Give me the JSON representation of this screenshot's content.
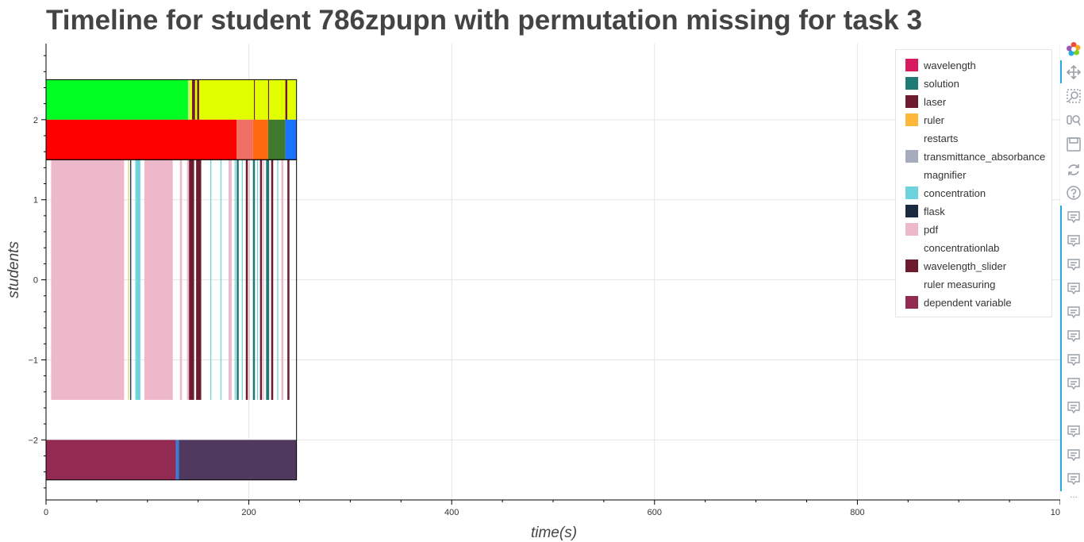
{
  "title": "Timeline for student 786zpupn with permutation missing for task 3",
  "chart_data": {
    "type": "bar",
    "subtype": "horizontal timeline",
    "xlabel": "time(s)",
    "ylabel": "students",
    "xlim": [
      0,
      1000
    ],
    "ylim": [
      -2.75,
      2.95
    ],
    "x_ticks": [
      0,
      200,
      400,
      600,
      800,
      1000
    ],
    "x_tick_labels": [
      "0",
      "200",
      "400",
      "600",
      "800",
      "1000"
    ],
    "y_ticks": [
      2,
      1,
      0,
      -1,
      -2
    ],
    "y_tick_labels": [
      "2",
      "1",
      "0",
      "−1",
      "−2"
    ],
    "grid": true,
    "legend_position": "top-right",
    "legend": [
      {
        "name": "wavelength",
        "color": "#d81b60"
      },
      {
        "name": "solution",
        "color": "#1f7a75"
      },
      {
        "name": "laser",
        "color": "#6e1b2f"
      },
      {
        "name": "ruler",
        "color": "#ffb73b"
      },
      {
        "name": "restarts",
        "color": ""
      },
      {
        "name": "transmittance_absorbance",
        "color": "#a5adbc"
      },
      {
        "name": "magnifier",
        "color": ""
      },
      {
        "name": "concentration",
        "color": "#6fd3db"
      },
      {
        "name": "flask",
        "color": "#1b2a40"
      },
      {
        "name": "pdf",
        "color": "#eeb8cb"
      },
      {
        "name": "concentrationlab",
        "color": ""
      },
      {
        "name": "wavelength_slider",
        "color": "#6e1b2f"
      },
      {
        "name": "ruler measuring",
        "color": ""
      },
      {
        "name": "dependent variable",
        "color": "#922a52"
      }
    ],
    "rows": [
      {
        "y": [
          2.0,
          2.5
        ],
        "segments": [
          {
            "start": 0,
            "end": 140,
            "color": "#00ff22"
          },
          {
            "start": 140,
            "end": 142,
            "color": "#c7f57e"
          },
          {
            "start": 142,
            "end": 144,
            "color": "#e2ff00"
          },
          {
            "start": 144,
            "end": 147,
            "color": "#6e1b2f"
          },
          {
            "start": 147,
            "end": 149,
            "color": "#e2ff00"
          },
          {
            "start": 149,
            "end": 151,
            "color": "#6e1b2f"
          },
          {
            "start": 151,
            "end": 205,
            "color": "#e2ff00"
          },
          {
            "start": 205,
            "end": 206,
            "color": "#6e1b2f"
          },
          {
            "start": 206,
            "end": 219,
            "color": "#e2ff00"
          },
          {
            "start": 219,
            "end": 220,
            "color": "#6e1b2f"
          },
          {
            "start": 220,
            "end": 236,
            "color": "#e2ff00"
          },
          {
            "start": 236,
            "end": 238,
            "color": "#6e1b2f"
          },
          {
            "start": 238,
            "end": 247,
            "color": "#e2ff00"
          }
        ]
      },
      {
        "y": [
          1.5,
          2.0
        ],
        "segments": [
          {
            "start": 0,
            "end": 188,
            "color": "#ff0000"
          },
          {
            "start": 188,
            "end": 204,
            "color": "#f07065"
          },
          {
            "start": 204,
            "end": 219,
            "color": "#ff6a10"
          },
          {
            "start": 219,
            "end": 236,
            "color": "#3f7a2f"
          },
          {
            "start": 236,
            "end": 247,
            "color": "#1a73ff"
          }
        ]
      },
      {
        "y": [
          -1.5,
          1.5
        ],
        "segments": [
          {
            "start": 5,
            "end": 77,
            "color": "#eeb8cb"
          },
          {
            "start": 81,
            "end": 82,
            "color": "#e8d36a"
          },
          {
            "start": 83,
            "end": 84,
            "color": "#1b2a40"
          },
          {
            "start": 88,
            "end": 89,
            "color": "#6fd3db"
          },
          {
            "start": 89,
            "end": 93,
            "color": "#6fd3db"
          },
          {
            "start": 97,
            "end": 125,
            "color": "#eeb8cb"
          },
          {
            "start": 132,
            "end": 134,
            "color": "#eeb8cb"
          },
          {
            "start": 139,
            "end": 141,
            "color": "#eeb8cb"
          },
          {
            "start": 141,
            "end": 146,
            "color": "#6e1b2f"
          },
          {
            "start": 148,
            "end": 153,
            "color": "#6e1b2f"
          },
          {
            "start": 162,
            "end": 163,
            "color": "#6fd3db"
          },
          {
            "start": 172,
            "end": 173,
            "color": "#6fd3db"
          },
          {
            "start": 180,
            "end": 183,
            "color": "#eeb8cb"
          },
          {
            "start": 186,
            "end": 187,
            "color": "#6fd3db"
          },
          {
            "start": 188,
            "end": 190,
            "color": "#1f7a75"
          },
          {
            "start": 193,
            "end": 194,
            "color": "#6fd3db"
          },
          {
            "start": 197,
            "end": 199,
            "color": "#6e1b2f"
          },
          {
            "start": 200,
            "end": 201,
            "color": "#eeb8cb"
          },
          {
            "start": 204,
            "end": 206,
            "color": "#1f7a75"
          },
          {
            "start": 208,
            "end": 209,
            "color": "#6fd3db"
          },
          {
            "start": 211,
            "end": 213,
            "color": "#6e1b2f"
          },
          {
            "start": 214,
            "end": 215,
            "color": "#eeb8cb"
          },
          {
            "start": 217,
            "end": 220,
            "color": "#1f7a75"
          },
          {
            "start": 222,
            "end": 224,
            "color": "#6e1b2f"
          },
          {
            "start": 228,
            "end": 229,
            "color": "#6fd3db"
          },
          {
            "start": 232,
            "end": 234,
            "color": "#eeb8cb"
          },
          {
            "start": 238,
            "end": 240,
            "color": "#6e1b2f"
          }
        ]
      },
      {
        "y": [
          -2.5,
          -2.0
        ],
        "segments": [
          {
            "start": 0,
            "end": 128,
            "color": "#922a52"
          },
          {
            "start": 128,
            "end": 131,
            "color": "#3a7bd5"
          },
          {
            "start": 131,
            "end": 247,
            "color": "#50395f"
          }
        ]
      }
    ],
    "frames": [
      {
        "start": 0,
        "end": 247,
        "y": [
          1.5,
          2.5
        ]
      },
      {
        "start": 0,
        "end": 247,
        "y": [
          -2.5,
          1.5
        ]
      }
    ]
  },
  "toolbar": {
    "tools": [
      "bokeh-logo-icon",
      "pan-icon",
      "box-zoom-icon",
      "wheel-zoom-icon",
      "save-icon",
      "reset-icon",
      "help-icon",
      "hover-icon",
      "hover-icon",
      "hover-icon",
      "hover-icon",
      "hover-icon",
      "hover-icon",
      "hover-icon",
      "hover-icon",
      "hover-icon",
      "hover-icon",
      "hover-icon",
      "hover-icon"
    ],
    "more": "..."
  }
}
